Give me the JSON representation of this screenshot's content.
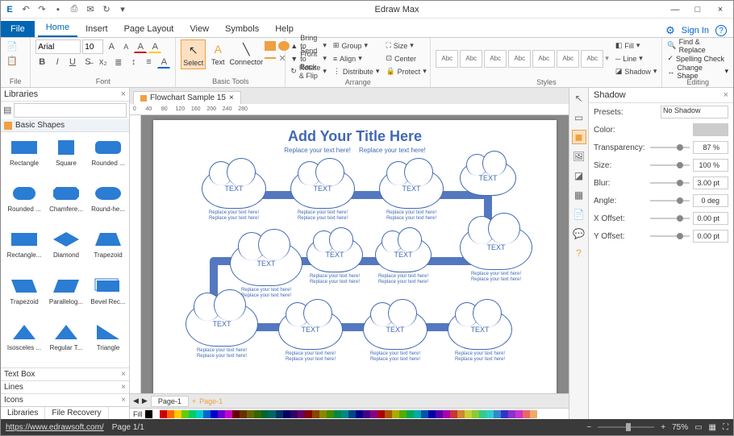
{
  "app_title": "Edraw Max",
  "window": {
    "min": "—",
    "max": "□",
    "close": "×"
  },
  "qat": [
    "↶",
    "↷",
    "🖫",
    "🖶",
    "✉",
    "↻"
  ],
  "menu": {
    "file": "File",
    "tabs": [
      "Home",
      "Insert",
      "Page Layout",
      "View",
      "Symbols",
      "Help"
    ],
    "active": "Home",
    "signin": "Sign In"
  },
  "ribbon": {
    "file_group": "File",
    "font": {
      "name": "Arial",
      "size": "10",
      "group": "Font"
    },
    "tools": {
      "select": "Select",
      "text": "Text",
      "connector": "Connector",
      "group": "Basic Tools"
    },
    "arrange": {
      "bring": "Bring to Front",
      "send": "Send to Back",
      "rotate": "Rotate & Flip",
      "group_btn": "Group",
      "align": "Align",
      "distribute": "Distribute",
      "size": "Size",
      "center": "Center",
      "protect": "Protect",
      "group": "Arrange"
    },
    "styles": {
      "label": "Abc",
      "fill": "Fill",
      "line": "Line",
      "shadow": "Shadow",
      "group": "Styles"
    },
    "editing": {
      "find": "Find & Replace",
      "spell": "Spelling Check",
      "change": "Change Shape",
      "group": "Editing"
    }
  },
  "libraries": {
    "title": "Libraries",
    "search_ph": "",
    "section": "Basic Shapes",
    "shapes": [
      "Rectangle",
      "Square",
      "Rounded ...",
      "Rounded ...",
      "Chamfere...",
      "Round-he...",
      "Rectangle...",
      "Diamond",
      "Trapezoid",
      "Trapezoid",
      "Parallelog...",
      "Bevel Rec...",
      "Isosceles ...",
      "Regular T...",
      "Triangle"
    ],
    "bottom": [
      "Text Box",
      "Lines",
      "Icons"
    ],
    "tabs": [
      "Libraries",
      "File Recovery"
    ]
  },
  "doc_tab": "Flowchart Sample 15",
  "canvas": {
    "title": "Add Your Title Here",
    "sub1": "Replace your text here!",
    "sub2": "Replace your text here!",
    "cloud_text": "TEXT",
    "caption1": "Replace your text here!",
    "caption2": "Replace your text here!",
    "page_tab": "Page-1",
    "page_tab2": "Page-1"
  },
  "colors": [
    "#000",
    "#fff",
    "#c00",
    "#f60",
    "#fc0",
    "#6c0",
    "#0c6",
    "#0cc",
    "#06c",
    "#00c",
    "#60c",
    "#c0c",
    "#600",
    "#630",
    "#660",
    "#360",
    "#063",
    "#066",
    "#036",
    "#006",
    "#306",
    "#606",
    "#800",
    "#840",
    "#880",
    "#480",
    "#084",
    "#088",
    "#048",
    "#008",
    "#408",
    "#808",
    "#a00",
    "#a50",
    "#aa0",
    "#5a0",
    "#0a5",
    "#0aa",
    "#05a",
    "#00a",
    "#50a",
    "#a0a",
    "#c33",
    "#c83",
    "#cc3",
    "#8c3",
    "#3c8",
    "#3cc",
    "#38c",
    "#33c",
    "#83c",
    "#c3c",
    "#e66",
    "#ea6"
  ],
  "shadow": {
    "title": "Shadow",
    "presets": "Presets:",
    "presets_val": "No Shadow",
    "color": "Color:",
    "transparency": "Transparency:",
    "trans_val": "87 %",
    "size": "Size:",
    "size_val": "100 %",
    "blur": "Blur:",
    "blur_val": "3.00 pt",
    "angle": "Angle:",
    "angle_val": "0 deg",
    "xoff": "X Offset:",
    "xoff_val": "0.00 pt",
    "yoff": "Y Offset:",
    "yoff_val": "0.00 pt"
  },
  "status": {
    "url": "https://www.edrawsoft.com/",
    "page": "Page 1/1",
    "zoom": "75%"
  },
  "fill_label": "Fill"
}
